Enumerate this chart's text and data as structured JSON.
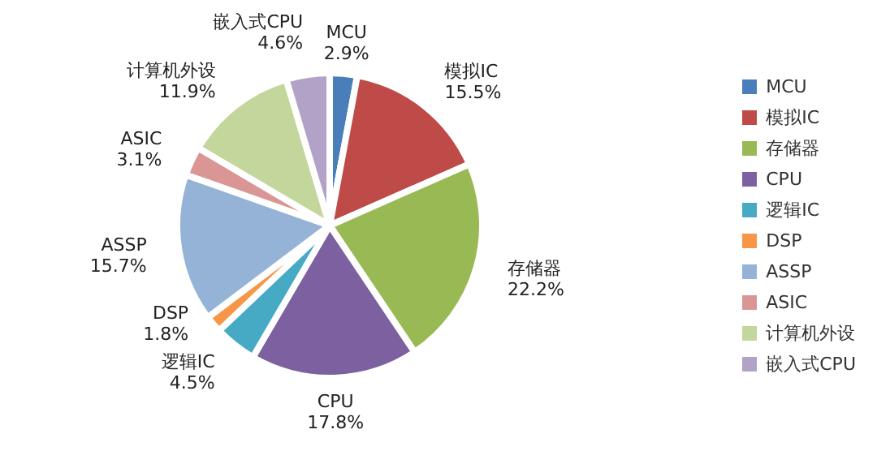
{
  "chart_data": {
    "type": "pie",
    "categories": [
      "MCU",
      "模拟IC",
      "存储器",
      "CPU",
      "逻辑IC",
      "DSP",
      "ASSP",
      "ASIC",
      "计算机外设",
      "嵌入式CPU"
    ],
    "values": [
      2.9,
      15.5,
      22.2,
      17.8,
      4.5,
      1.8,
      15.7,
      3.1,
      11.9,
      4.6
    ],
    "value_labels": [
      "2.9%",
      "15.5%",
      "22.2%",
      "17.8%",
      "4.5%",
      "1.8%",
      "15.7%",
      "3.1%",
      "11.9%",
      "4.6%"
    ],
    "colors": [
      "#4a7ebb",
      "#be4b48",
      "#98b954",
      "#7d60a0",
      "#46aac5",
      "#f79646",
      "#95b3d7",
      "#d99694",
      "#c3d69b",
      "#b3a2c7"
    ],
    "legend": "right"
  }
}
